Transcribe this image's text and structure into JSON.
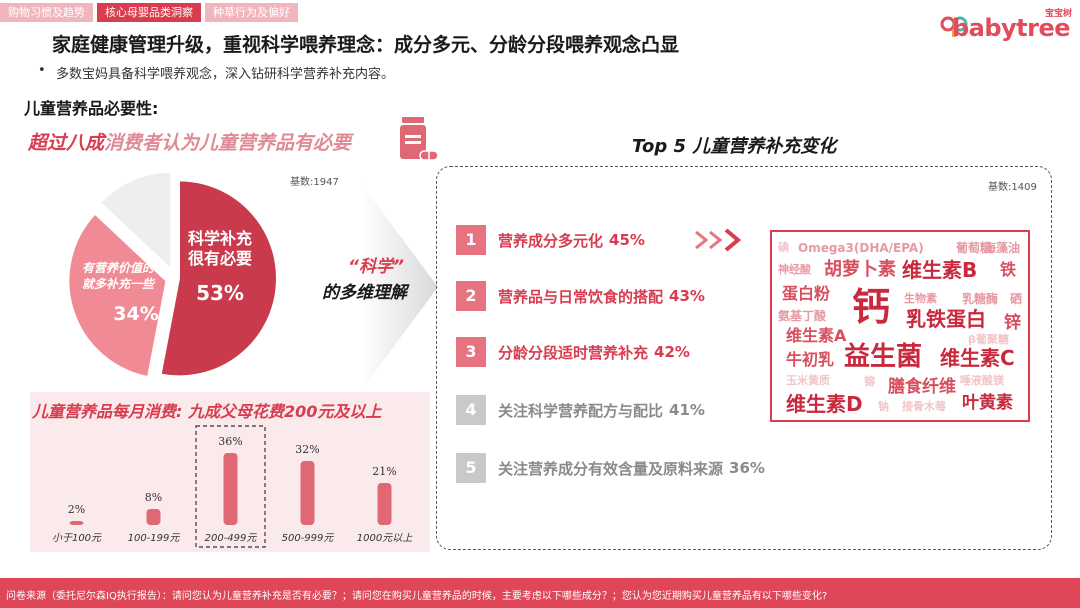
{
  "tabs": [
    {
      "label": "购物习惯及趋势",
      "active": false
    },
    {
      "label": "核心母婴品类洞察",
      "active": true
    },
    {
      "label": "种草行为及偏好",
      "active": false
    }
  ],
  "logo": {
    "small": "宝宝树",
    "text": "babytree"
  },
  "headline": "家庭健康管理升级，重视科学喂养理念：成分多元、分龄分段喂养观念凸显",
  "bullet": "多数宝妈具备科学喂养观念，深入钻研科学营养补充内容。",
  "section_label": "儿童营养品必要性:",
  "callout1": {
    "emph": "超过八成",
    "rest": "消费者认为儿童营养品有必要"
  },
  "base1": "基数:1947",
  "pie": {
    "slices": [
      {
        "label_lines": [
          "科学补充",
          "很有必要"
        ],
        "value_label": "53%",
        "value": 53,
        "color": "#c83a4c"
      },
      {
        "label_lines": [
          "有营养价值的",
          "就多补充一些"
        ],
        "value_label": "34%",
        "value": 34,
        "color": "#f08b95"
      },
      {
        "label_lines": [],
        "value_label": "",
        "value": 13,
        "color": "#eeeeee"
      }
    ]
  },
  "science": {
    "quote": "“科学”",
    "text": "的多维理解"
  },
  "callout2": "儿童营养品每月消费: 九成父母花费200元及以上",
  "chart_data": {
    "type": "bar",
    "title": "儿童营养品每月消费: 九成父母花费200元及以上",
    "categories": [
      "小于100元",
      "100-199元",
      "200-499元",
      "500-999元",
      "1000元以上"
    ],
    "values": [
      2,
      8,
      36,
      32,
      21
    ],
    "value_labels": [
      "2%",
      "8%",
      "36%",
      "32%",
      "21%"
    ],
    "highlight_index": 2,
    "ylim": [
      0,
      40
    ],
    "color": "#e06774"
  },
  "top5": {
    "title": "Top 5 儿童营养补充变化",
    "base": "基数:1409",
    "items": [
      {
        "num": "1",
        "text": "营养成分多元化",
        "pct": "45%"
      },
      {
        "num": "2",
        "text": "营养品与日常饮食的搭配",
        "pct": "43%"
      },
      {
        "num": "3",
        "text": "分龄分段适时营养补充",
        "pct": "42%"
      },
      {
        "num": "4",
        "text": "关注科学营养配方与配比",
        "pct": "41%"
      },
      {
        "num": "5",
        "text": "关注营养成分有效含量及原料来源",
        "pct": "36%"
      }
    ]
  },
  "word_cloud": [
    {
      "text": "碘",
      "tone": "pale"
    },
    {
      "text": "Omega3(DHA/EPA)",
      "tone": "light"
    },
    {
      "text": "葡萄糖",
      "tone": "light"
    },
    {
      "text": "海藻油",
      "tone": "light"
    },
    {
      "text": "神经酸",
      "tone": "light"
    },
    {
      "text": "胡萝卜素",
      "tone": "mid"
    },
    {
      "text": "维生素B",
      "tone": "dark"
    },
    {
      "text": "铁",
      "tone": "mid"
    },
    {
      "text": "蛋白粉",
      "tone": "mid"
    },
    {
      "text": "钙",
      "tone": "dark"
    },
    {
      "text": "生物素",
      "tone": "light"
    },
    {
      "text": "乳糖酶",
      "tone": "light"
    },
    {
      "text": "硒",
      "tone": "light"
    },
    {
      "text": "氨基丁酸",
      "tone": "light"
    },
    {
      "text": "乳铁蛋白",
      "tone": "dark"
    },
    {
      "text": "锌",
      "tone": "mid"
    },
    {
      "text": "维生素A",
      "tone": "mid"
    },
    {
      "text": "β葡聚糖",
      "tone": "pale"
    },
    {
      "text": "牛初乳",
      "tone": "mid"
    },
    {
      "text": "益生菌",
      "tone": "dark"
    },
    {
      "text": "维生素C",
      "tone": "dark"
    },
    {
      "text": "玉米黄质",
      "tone": "pale"
    },
    {
      "text": "镕",
      "tone": "pale"
    },
    {
      "text": "唾液酸镁",
      "tone": "pale"
    },
    {
      "text": "膳食纤维",
      "tone": "mid"
    },
    {
      "text": "维生素D",
      "tone": "dark"
    },
    {
      "text": "钠",
      "tone": "pale"
    },
    {
      "text": "接骨木莓",
      "tone": "pale"
    },
    {
      "text": "叶黄素",
      "tone": "dark"
    }
  ],
  "colors": {
    "accent": "#d83c4e",
    "accent_light": "#e6737f",
    "grey": "#c9c9c9",
    "tone": {
      "dark": "#c9283d",
      "mid": "#d8505f",
      "light": "#e79aa3",
      "pale": "#f1c5ca"
    }
  },
  "footer": "问卷来源（委托尼尔森IQ执行报告）：请问您认为儿童营养补充是否有必要？；请问您在购买儿童营养品的时候，主要考虑以下哪些成分？；您认为您近期购买儿童营养品有以下哪些变化?"
}
